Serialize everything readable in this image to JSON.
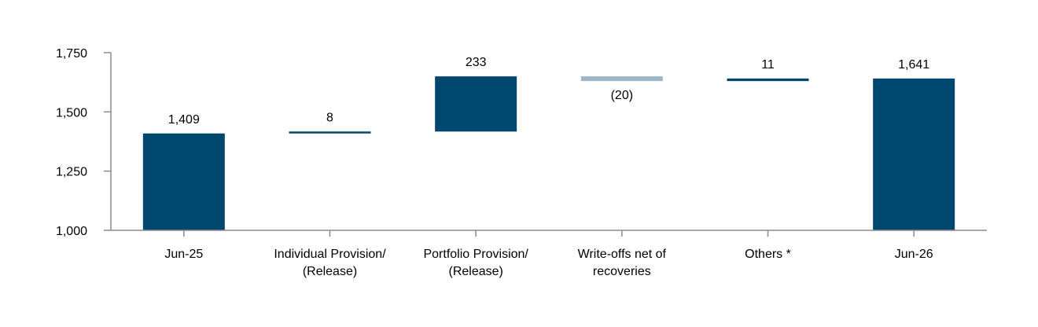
{
  "chart_data": {
    "type": "waterfall",
    "categories": [
      [
        "Jun-25"
      ],
      [
        "Individual Provision/",
        "(Release)"
      ],
      [
        "Portfolio Provision/",
        "(Release)"
      ],
      [
        "Write-offs net of",
        "recoveries"
      ],
      [
        "Others *"
      ],
      [
        "Jun-26"
      ]
    ],
    "steps": [
      {
        "kind": "total",
        "value": 1409,
        "label": "1,409"
      },
      {
        "kind": "delta",
        "value": 8,
        "label": "8"
      },
      {
        "kind": "delta",
        "value": 233,
        "label": "233"
      },
      {
        "kind": "delta",
        "value": -20,
        "label": "(20)"
      },
      {
        "kind": "delta",
        "value": 11,
        "label": "11"
      },
      {
        "kind": "total",
        "value": 1641,
        "label": "1,641"
      }
    ],
    "ylim": [
      1000,
      1750
    ],
    "yticks": [
      1000,
      1250,
      1500,
      1750
    ],
    "ytick_labels": [
      "1,000",
      "1,250",
      "1,500",
      "1,750"
    ],
    "colors": {
      "total": "#00476f",
      "increase": "#00476f",
      "decrease": "#9bb6c6",
      "axis": "#8c8c8c"
    },
    "grid": false
  }
}
